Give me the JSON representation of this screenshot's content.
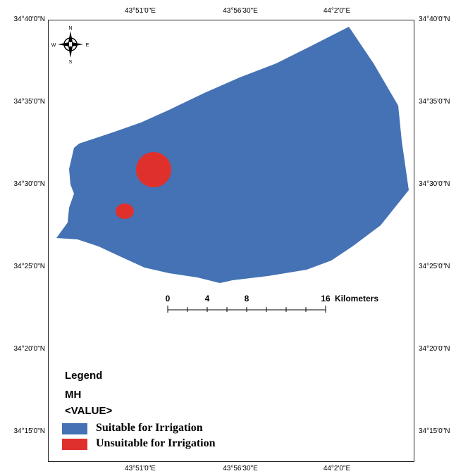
{
  "map": {
    "latitude_labels": [
      "34°40'0\"N",
      "34°35'0\"N",
      "34°30'0\"N",
      "34°25'0\"N",
      "34°20'0\"N",
      "34°15'0\"N"
    ],
    "longitude_labels": [
      "43°51'0\"E",
      "43°56'30\"E",
      "44°2'0\"E"
    ],
    "colors": {
      "suitable": "#4472b4",
      "unsuitable": "#e0302c"
    }
  },
  "north_arrow": {
    "n": "N",
    "s": "S",
    "e": "E",
    "w": "W"
  },
  "scale_bar": {
    "ticks": [
      "0",
      "4",
      "8",
      "16"
    ],
    "unit": "Kilometers"
  },
  "legend": {
    "title": "Legend",
    "layer": "MH",
    "field": "<VALUE>",
    "items": [
      {
        "label": "Suitable for Irrigation",
        "color": "#4472b4"
      },
      {
        "label": "Unsuitable for Irrigation",
        "color": "#e0302c"
      }
    ]
  }
}
